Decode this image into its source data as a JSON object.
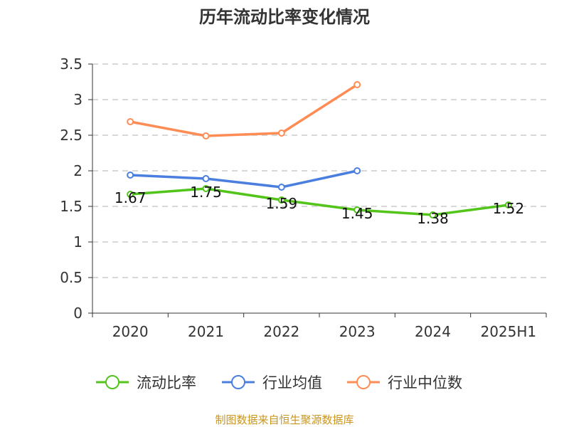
{
  "chart_data": {
    "type": "line",
    "title": "历年流动比率变化情况",
    "categories": [
      "2020",
      "2021",
      "2022",
      "2023",
      "2024",
      "2025H1"
    ],
    "ylim": [
      0,
      3.5
    ],
    "yticks": [
      "0",
      "0.5",
      "1",
      "1.5",
      "2",
      "2.5",
      "3",
      "3.5"
    ],
    "grid": true,
    "legend_position": "bottom",
    "series": [
      {
        "name": "流动比率",
        "color": "#52c41a",
        "values": [
          1.67,
          1.75,
          1.59,
          1.45,
          1.38,
          1.52
        ],
        "labels": [
          "1.67",
          "1.75",
          "1.59",
          "1.45",
          "1.38",
          "1.52"
        ]
      },
      {
        "name": "行业均值",
        "color": "#4a7fe0",
        "values": [
          1.94,
          1.89,
          1.77,
          2.0,
          null,
          null
        ]
      },
      {
        "name": "行业中位数",
        "color": "#ff8c55",
        "values": [
          2.69,
          2.49,
          2.53,
          3.21,
          null,
          null
        ]
      }
    ]
  },
  "source": "制图数据来自恒生聚源数据库"
}
